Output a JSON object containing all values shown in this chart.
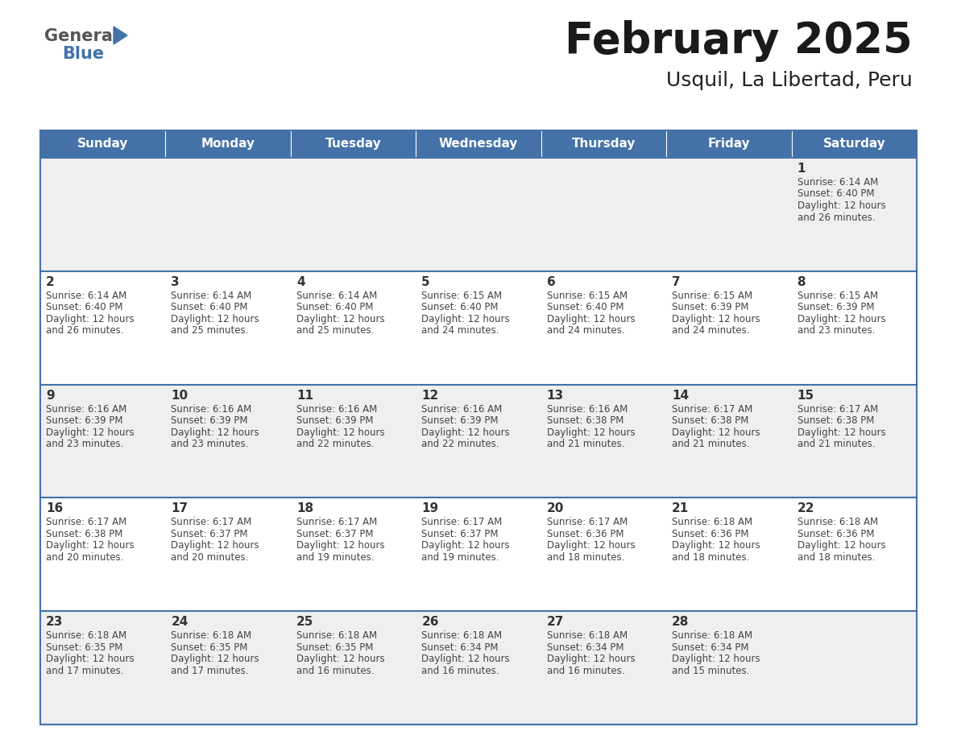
{
  "title": "February 2025",
  "subtitle": "Usquil, La Libertad, Peru",
  "header_bg_color": "#4472a8",
  "header_text_color": "#ffffff",
  "days_of_week": [
    "Sunday",
    "Monday",
    "Tuesday",
    "Wednesday",
    "Thursday",
    "Friday",
    "Saturday"
  ],
  "row_bg_even": "#efefef",
  "row_bg_odd": "#ffffff",
  "cell_border_color": "#4472a8",
  "day_number_color": "#333333",
  "text_color": "#444444",
  "calendar": [
    [
      {
        "day": 0,
        "sunrise": "",
        "sunset": "",
        "daylight": ""
      },
      {
        "day": 0,
        "sunrise": "",
        "sunset": "",
        "daylight": ""
      },
      {
        "day": 0,
        "sunrise": "",
        "sunset": "",
        "daylight": ""
      },
      {
        "day": 0,
        "sunrise": "",
        "sunset": "",
        "daylight": ""
      },
      {
        "day": 0,
        "sunrise": "",
        "sunset": "",
        "daylight": ""
      },
      {
        "day": 0,
        "sunrise": "",
        "sunset": "",
        "daylight": ""
      },
      {
        "day": 1,
        "sunrise": "6:14 AM",
        "sunset": "6:40 PM",
        "daylight": "12 hours and 26 minutes."
      }
    ],
    [
      {
        "day": 2,
        "sunrise": "6:14 AM",
        "sunset": "6:40 PM",
        "daylight": "12 hours and 26 minutes."
      },
      {
        "day": 3,
        "sunrise": "6:14 AM",
        "sunset": "6:40 PM",
        "daylight": "12 hours and 25 minutes."
      },
      {
        "day": 4,
        "sunrise": "6:14 AM",
        "sunset": "6:40 PM",
        "daylight": "12 hours and 25 minutes."
      },
      {
        "day": 5,
        "sunrise": "6:15 AM",
        "sunset": "6:40 PM",
        "daylight": "12 hours and 24 minutes."
      },
      {
        "day": 6,
        "sunrise": "6:15 AM",
        "sunset": "6:40 PM",
        "daylight": "12 hours and 24 minutes."
      },
      {
        "day": 7,
        "sunrise": "6:15 AM",
        "sunset": "6:39 PM",
        "daylight": "12 hours and 24 minutes."
      },
      {
        "day": 8,
        "sunrise": "6:15 AM",
        "sunset": "6:39 PM",
        "daylight": "12 hours and 23 minutes."
      }
    ],
    [
      {
        "day": 9,
        "sunrise": "6:16 AM",
        "sunset": "6:39 PM",
        "daylight": "12 hours and 23 minutes."
      },
      {
        "day": 10,
        "sunrise": "6:16 AM",
        "sunset": "6:39 PM",
        "daylight": "12 hours and 23 minutes."
      },
      {
        "day": 11,
        "sunrise": "6:16 AM",
        "sunset": "6:39 PM",
        "daylight": "12 hours and 22 minutes."
      },
      {
        "day": 12,
        "sunrise": "6:16 AM",
        "sunset": "6:39 PM",
        "daylight": "12 hours and 22 minutes."
      },
      {
        "day": 13,
        "sunrise": "6:16 AM",
        "sunset": "6:38 PM",
        "daylight": "12 hours and 21 minutes."
      },
      {
        "day": 14,
        "sunrise": "6:17 AM",
        "sunset": "6:38 PM",
        "daylight": "12 hours and 21 minutes."
      },
      {
        "day": 15,
        "sunrise": "6:17 AM",
        "sunset": "6:38 PM",
        "daylight": "12 hours and 21 minutes."
      }
    ],
    [
      {
        "day": 16,
        "sunrise": "6:17 AM",
        "sunset": "6:38 PM",
        "daylight": "12 hours and 20 minutes."
      },
      {
        "day": 17,
        "sunrise": "6:17 AM",
        "sunset": "6:37 PM",
        "daylight": "12 hours and 20 minutes."
      },
      {
        "day": 18,
        "sunrise": "6:17 AM",
        "sunset": "6:37 PM",
        "daylight": "12 hours and 19 minutes."
      },
      {
        "day": 19,
        "sunrise": "6:17 AM",
        "sunset": "6:37 PM",
        "daylight": "12 hours and 19 minutes."
      },
      {
        "day": 20,
        "sunrise": "6:17 AM",
        "sunset": "6:36 PM",
        "daylight": "12 hours and 18 minutes."
      },
      {
        "day": 21,
        "sunrise": "6:18 AM",
        "sunset": "6:36 PM",
        "daylight": "12 hours and 18 minutes."
      },
      {
        "day": 22,
        "sunrise": "6:18 AM",
        "sunset": "6:36 PM",
        "daylight": "12 hours and 18 minutes."
      }
    ],
    [
      {
        "day": 23,
        "sunrise": "6:18 AM",
        "sunset": "6:35 PM",
        "daylight": "12 hours and 17 minutes."
      },
      {
        "day": 24,
        "sunrise": "6:18 AM",
        "sunset": "6:35 PM",
        "daylight": "12 hours and 17 minutes."
      },
      {
        "day": 25,
        "sunrise": "6:18 AM",
        "sunset": "6:35 PM",
        "daylight": "12 hours and 16 minutes."
      },
      {
        "day": 26,
        "sunrise": "6:18 AM",
        "sunset": "6:34 PM",
        "daylight": "12 hours and 16 minutes."
      },
      {
        "day": 27,
        "sunrise": "6:18 AM",
        "sunset": "6:34 PM",
        "daylight": "12 hours and 16 minutes."
      },
      {
        "day": 28,
        "sunrise": "6:18 AM",
        "sunset": "6:34 PM",
        "daylight": "12 hours and 15 minutes."
      },
      {
        "day": 0,
        "sunrise": "",
        "sunset": "",
        "daylight": ""
      }
    ]
  ],
  "logo_general_color": "#555555",
  "logo_blue_color": "#4472a8",
  "logo_triangle_color": "#4472a8",
  "title_fontsize": 38,
  "subtitle_fontsize": 18,
  "header_fontsize": 11,
  "day_number_fontsize": 11,
  "cell_text_fontsize": 8.5
}
